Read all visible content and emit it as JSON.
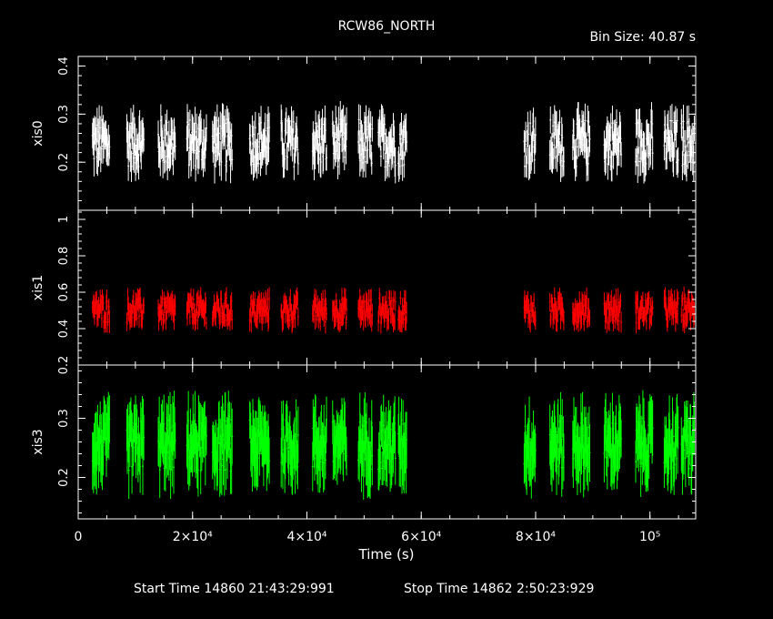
{
  "header": {
    "title": "RCW86_NORTH",
    "bin_size": "Bin Size: 40.87 s"
  },
  "footer": {
    "start_time": "Start Time 14860 21:43:29:991",
    "stop_time": "Stop Time 14862  2:50:23:929"
  },
  "chart_data": {
    "type": "scatter",
    "title": "RCW86_NORTH",
    "xlabel": "Time (s)",
    "xlim": [
      0,
      108000
    ],
    "x_ticks": [
      {
        "value": 0,
        "label": "0"
      },
      {
        "value": 20000,
        "label": "2×10⁴"
      },
      {
        "value": 40000,
        "label": "4×10⁴"
      },
      {
        "value": 60000,
        "label": "6×10⁴"
      },
      {
        "value": 80000,
        "label": "8×10⁴"
      },
      {
        "value": 100000,
        "label": "10⁵"
      }
    ],
    "segments": [
      [
        2500,
        5500
      ],
      [
        8500,
        11500
      ],
      [
        14000,
        17000
      ],
      [
        19000,
        22500
      ],
      [
        23500,
        27000
      ],
      [
        30000,
        33500
      ],
      [
        35500,
        38500
      ],
      [
        41000,
        43500
      ],
      [
        44500,
        47000
      ],
      [
        49000,
        51500
      ],
      [
        52500,
        55500
      ],
      [
        56000,
        57500
      ],
      [
        78000,
        80000
      ],
      [
        82500,
        85000
      ],
      [
        86500,
        89500
      ],
      [
        92000,
        95000
      ],
      [
        97500,
        100500
      ],
      [
        102500,
        105000
      ],
      [
        105500,
        107800
      ]
    ],
    "panels": [
      {
        "name": "xis0",
        "color": "#ffffff",
        "ylim": [
          0.1,
          0.42
        ],
        "yticks": [
          0.2,
          0.3,
          0.4
        ],
        "level": 0.24,
        "spread": 0.05,
        "err": 0.03
      },
      {
        "name": "xis1",
        "color": "#ff0000",
        "ylim": [
          0.2,
          1.05
        ],
        "yticks": [
          0.2,
          0.4,
          0.6,
          0.8,
          1
        ],
        "level": 0.5,
        "spread": 0.07,
        "err": 0.05
      },
      {
        "name": "xis3",
        "color": "#00ff00",
        "ylim": [
          0.13,
          0.39
        ],
        "yticks": [
          0.2,
          0.3
        ],
        "level": 0.255,
        "spread": 0.045,
        "err": 0.04
      }
    ]
  }
}
